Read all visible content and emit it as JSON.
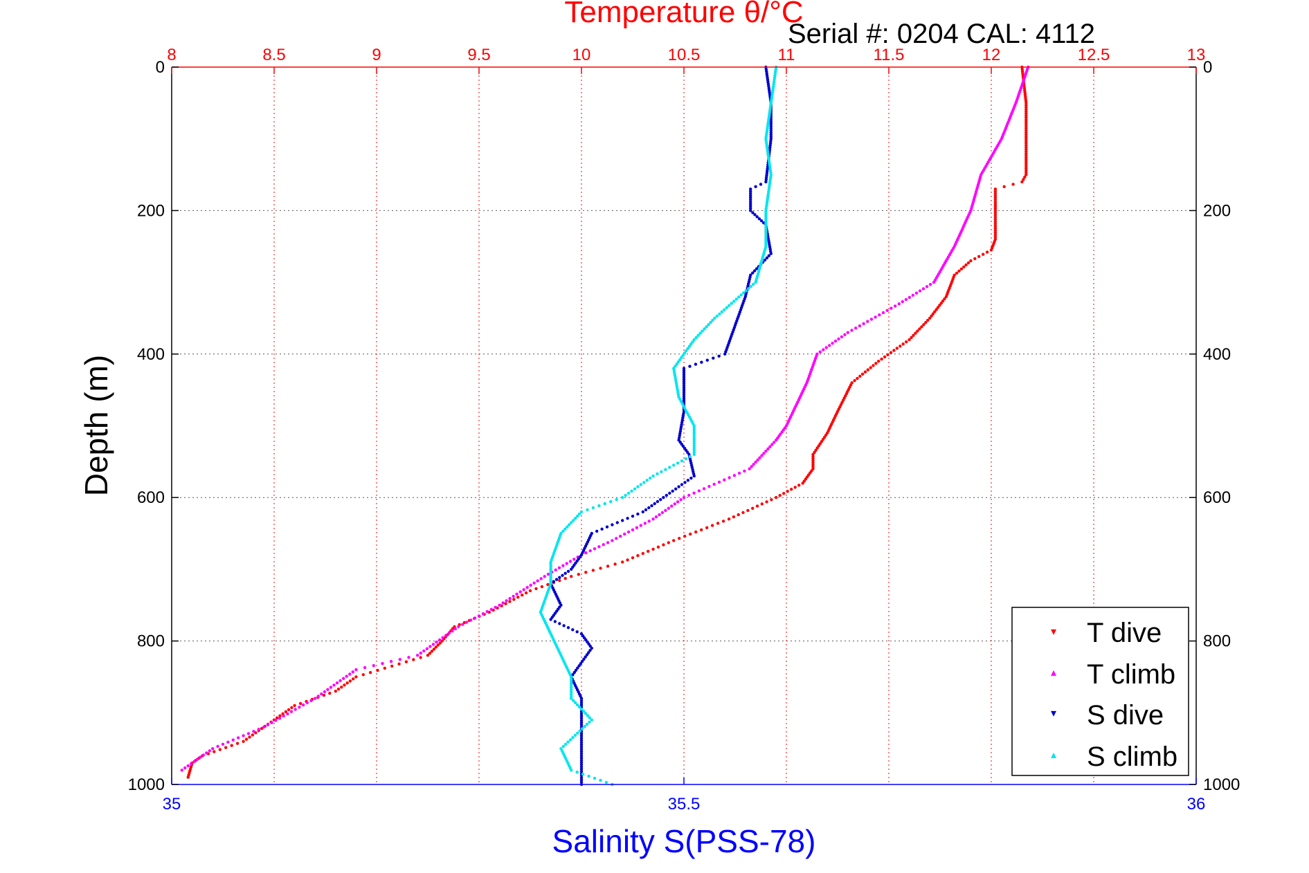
{
  "chart_data": {
    "type": "scatter",
    "title": "Temperature θ/°C",
    "subtitle": "Serial #: 0204  CAL: 4112",
    "ylabel": "Depth (m)",
    "xlabel": "Salinity S(PSS-78)",
    "ylim": [
      1000,
      0
    ],
    "y_ticks": [
      "0",
      "200",
      "400",
      "600",
      "800",
      "1000"
    ],
    "x_temperature": {
      "range": [
        8,
        13
      ],
      "ticks": [
        "8",
        "8.5",
        "9",
        "9.5",
        "10",
        "10.5",
        "11",
        "11.5",
        "12",
        "12.5",
        "13"
      ]
    },
    "x_salinity": {
      "range": [
        35,
        36
      ],
      "ticks": [
        "35",
        "35.5",
        "36"
      ]
    },
    "grid": true,
    "legend_position": "bottom-right",
    "colors": {
      "temperature_axis": "#ff0000",
      "salinity_axis": "#0000ff",
      "t_dive": "#ff0000",
      "t_climb": "#ff00ff",
      "s_dive": "#0000cc",
      "s_climb": "#00e5ee"
    },
    "series": [
      {
        "name": "T dive",
        "axis": "temperature",
        "marker": "▾",
        "points": [
          [
            12.15,
            0
          ],
          [
            12.17,
            50
          ],
          [
            12.17,
            100
          ],
          [
            12.17,
            150
          ],
          [
            12.15,
            160
          ],
          [
            12.02,
            170
          ],
          [
            12.02,
            200
          ],
          [
            12.02,
            240
          ],
          [
            12.0,
            255
          ],
          [
            11.9,
            270
          ],
          [
            11.82,
            290
          ],
          [
            11.78,
            320
          ],
          [
            11.7,
            350
          ],
          [
            11.6,
            380
          ],
          [
            11.45,
            410
          ],
          [
            11.32,
            440
          ],
          [
            11.25,
            480
          ],
          [
            11.2,
            510
          ],
          [
            11.13,
            540
          ],
          [
            11.13,
            560
          ],
          [
            11.08,
            580
          ],
          [
            10.95,
            600
          ],
          [
            10.72,
            630
          ],
          [
            10.45,
            660
          ],
          [
            10.2,
            690
          ],
          [
            9.95,
            710
          ],
          [
            9.75,
            730
          ],
          [
            9.55,
            760
          ],
          [
            9.38,
            780
          ],
          [
            9.32,
            800
          ],
          [
            9.25,
            820
          ],
          [
            8.9,
            850
          ],
          [
            8.8,
            870
          ],
          [
            8.6,
            890
          ],
          [
            8.5,
            910
          ],
          [
            8.35,
            940
          ],
          [
            8.15,
            960
          ],
          [
            8.1,
            970
          ],
          [
            8.08,
            990
          ]
        ]
      },
      {
        "name": "T climb",
        "axis": "temperature",
        "marker": "▴",
        "points": [
          [
            12.18,
            0
          ],
          [
            12.12,
            50
          ],
          [
            12.05,
            100
          ],
          [
            11.95,
            150
          ],
          [
            11.9,
            200
          ],
          [
            11.82,
            250
          ],
          [
            11.72,
            300
          ],
          [
            11.55,
            330
          ],
          [
            11.3,
            370
          ],
          [
            11.15,
            400
          ],
          [
            11.1,
            440
          ],
          [
            11.05,
            470
          ],
          [
            11.0,
            500
          ],
          [
            10.95,
            520
          ],
          [
            10.82,
            560
          ],
          [
            10.5,
            600
          ],
          [
            10.35,
            630
          ],
          [
            10.15,
            660
          ],
          [
            10.0,
            680
          ],
          [
            9.82,
            710
          ],
          [
            9.6,
            750
          ],
          [
            9.4,
            780
          ],
          [
            9.2,
            820
          ],
          [
            8.9,
            840
          ],
          [
            8.7,
            880
          ],
          [
            8.45,
            920
          ],
          [
            8.2,
            950
          ],
          [
            8.05,
            980
          ]
        ]
      },
      {
        "name": "S dive",
        "axis": "salinity",
        "marker": "▾",
        "points": [
          [
            35.58,
            0
          ],
          [
            35.585,
            50
          ],
          [
            35.585,
            100
          ],
          [
            35.58,
            160
          ],
          [
            35.565,
            170
          ],
          [
            35.565,
            200
          ],
          [
            35.58,
            220
          ],
          [
            35.585,
            260
          ],
          [
            35.565,
            290
          ],
          [
            35.56,
            320
          ],
          [
            35.55,
            360
          ],
          [
            35.54,
            400
          ],
          [
            35.5,
            420
          ],
          [
            35.5,
            450
          ],
          [
            35.5,
            480
          ],
          [
            35.495,
            520
          ],
          [
            35.505,
            540
          ],
          [
            35.51,
            570
          ],
          [
            35.48,
            600
          ],
          [
            35.46,
            620
          ],
          [
            35.41,
            650
          ],
          [
            35.4,
            680
          ],
          [
            35.39,
            700
          ],
          [
            35.37,
            720
          ],
          [
            35.38,
            750
          ],
          [
            35.37,
            770
          ],
          [
            35.4,
            790
          ],
          [
            35.41,
            810
          ],
          [
            35.39,
            850
          ],
          [
            35.4,
            880
          ],
          [
            35.4,
            920
          ],
          [
            35.4,
            960
          ],
          [
            35.4,
            1000
          ]
        ]
      },
      {
        "name": "S climb",
        "axis": "salinity",
        "marker": "▴",
        "points": [
          [
            35.59,
            0
          ],
          [
            35.585,
            50
          ],
          [
            35.58,
            100
          ],
          [
            35.585,
            150
          ],
          [
            35.58,
            200
          ],
          [
            35.58,
            250
          ],
          [
            35.57,
            300
          ],
          [
            35.53,
            350
          ],
          [
            35.51,
            380
          ],
          [
            35.49,
            420
          ],
          [
            35.495,
            460
          ],
          [
            35.51,
            500
          ],
          [
            35.51,
            540
          ],
          [
            35.47,
            570
          ],
          [
            35.44,
            600
          ],
          [
            35.4,
            620
          ],
          [
            35.38,
            650
          ],
          [
            35.37,
            690
          ],
          [
            35.37,
            720
          ],
          [
            35.36,
            760
          ],
          [
            35.37,
            790
          ],
          [
            35.38,
            820
          ],
          [
            35.39,
            850
          ],
          [
            35.39,
            880
          ],
          [
            35.41,
            910
          ],
          [
            35.38,
            950
          ],
          [
            35.39,
            980
          ],
          [
            35.43,
            1000
          ]
        ]
      }
    ]
  }
}
